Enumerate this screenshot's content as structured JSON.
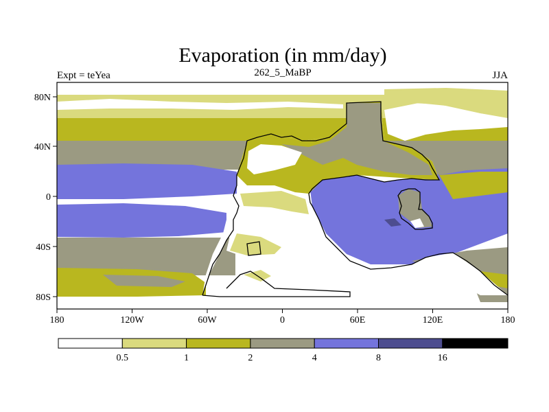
{
  "header": {
    "title": "Evaporation (in mm/day)",
    "left_label": "Expt = teYea",
    "center_label": "262_5_MaBP",
    "right_label": "JJA"
  },
  "axes": {
    "x_ticks": [
      "180",
      "120W",
      "60W",
      "0",
      "60E",
      "120E",
      "180"
    ],
    "y_ticks": [
      "80N",
      "40N",
      "0",
      "40S",
      "80S"
    ]
  },
  "colorbar": {
    "levels": [
      "0.5",
      "1",
      "2",
      "4",
      "8",
      "16"
    ],
    "colors": [
      "#ffffff",
      "#dada7e",
      "#b9b71f",
      "#9b9a82",
      "#7474dc",
      "#4d4d8f",
      "#000000"
    ]
  },
  "palette": {
    "land_outline": "#000000",
    "frame": "#000000"
  }
}
